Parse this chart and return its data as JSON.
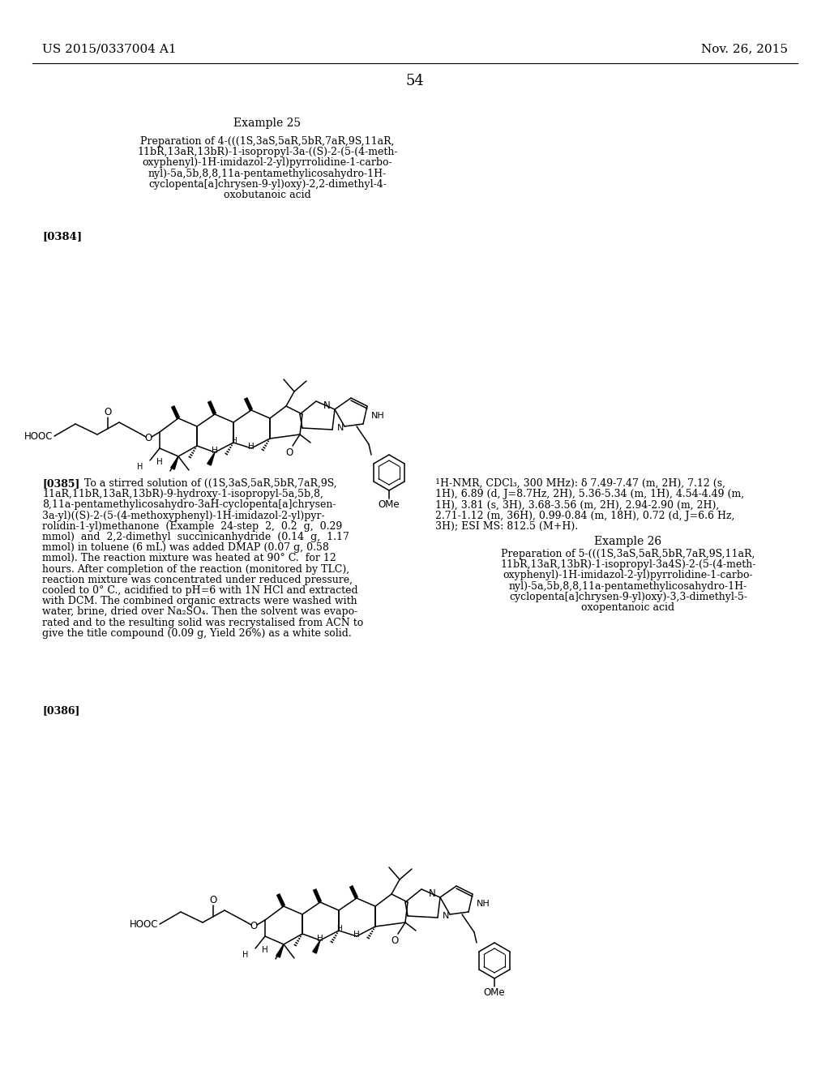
{
  "background_color": "#ffffff",
  "page_number": "54",
  "header_left": "US 2015/0337004 A1",
  "header_right": "Nov. 26, 2015",
  "example25_title": "Example 25",
  "example25_prep_lines": [
    "Preparation of 4-(((1S,3aS,5aR,5bR,7aR,9S,11aR,",
    "11bR,13aR,13bR)-1-isopropyl-3a-((S)-2-(5-(4-meth-",
    "oxyphenyl)-1H-imidazol-2-yl)pyrrolidine-1-carbo-",
    "nyl)-5a,5b,8,8,11a-pentamethylicosahydro-1H-",
    "cyclopenta[a]chrysen-9-yl)oxy)-2,2-dimethyl-4-",
    "oxobutanoic acid"
  ],
  "para384": "[0384]",
  "para385_bold": "[0385]",
  "para385_lines": [
    "To a stirred solution of ((1S,3aS,5aR,5bR,7aR,9S,",
    "11aR,11bR,13aR,13bR)-9-hydroxy-1-isopropyl-5a,5b,8,",
    "8,11a-pentamethylicosahydro-3aH-cyclopenta[a]chrysen-",
    "3a-yl)((S)-2-(5-(4-methoxyphenyl)-1H-imidazol-2-yl)pyr-",
    "rolidin-1-yl)methanone  (Example  24-step  2,  0.2  g,  0.29",
    "mmol)  and  2,2-dimethyl  succinicanhydride  (0.14  g,  1.17",
    "mmol) in toluene (6 mL) was added DMAP (0.07 g, 0.58",
    "mmol). The reaction mixture was heated at 90° C.  for 12",
    "hours. After completion of the reaction (monitored by TLC),",
    "reaction mixture was concentrated under reduced pressure,",
    "cooled to 0° C., acidified to pH=6 with 1N HCl and extracted",
    "with DCM. The combined organic extracts were washed with",
    "water, brine, dried over Na₂SO₄. Then the solvent was evapo-",
    "rated and to the resulting solid was recrystalised from ACN to",
    "give the title compound (0.09 g, Yield 26%) as a white solid."
  ],
  "nmr385_line1_super": "1",
  "nmr385_line1_rest": "H-NMR, CDCl₃, 300 MHz): δ 7.49-7.47 (m, 2H), 7.12 (s,",
  "nmr385_lines_rest": [
    "1H), 6.89 (d, J=8.7Hz, 2H), 5.36-5.34 (m, 1H), 4.54-4.49 (m,",
    "1H), 3.81 (s, 3H), 3.68-3.56 (m, 2H), 2.94-2.90 (m, 2H),",
    "2.71-1.12 (m, 36H), 0.99-0.84 (m, 18H), 0.72 (d, J=6.6 Hz,",
    "3H); ESI MS: 812.5 (M+H)."
  ],
  "example26_title": "Example 26",
  "example26_prep_lines": [
    "Preparation of 5-(((1S,3aS,5aR,5bR,7aR,9S,11aR,",
    "11bR,13aR,13bR)-1-isopropyl-3a4S)-2-(5-(4-meth-",
    "oxyphenyl)-1H-imidazol-2-yl)pyrrolidine-1-carbo-",
    "nyl)-5a,5b,8,8,11a-pentamethylicosahydro-1H-",
    "cyclopenta[a]chrysen-9-yl)oxy)-3,3-dimethyl-5-",
    "oxopentanoic acid"
  ],
  "para386": "[0386]"
}
